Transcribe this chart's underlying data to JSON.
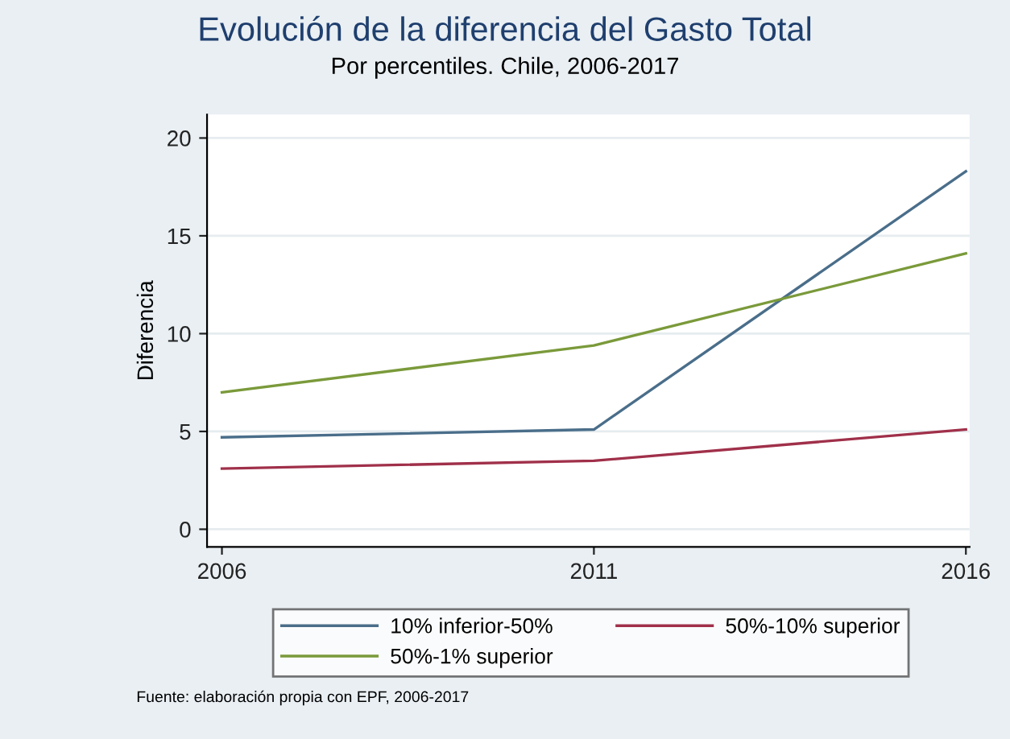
{
  "chart_data": {
    "type": "line",
    "title": "Evolución de la diferencia del Gasto Total",
    "subtitle": "Por percentiles. Chile, 2006-2017",
    "ylabel": "Diferencia",
    "x": [
      2006,
      2011,
      2016
    ],
    "xlim": [
      2005.8,
      2016.05
    ],
    "xticks": [
      2006,
      2011,
      2016
    ],
    "ylim": [
      -0.9,
      21.2
    ],
    "yticks": [
      0,
      5,
      10,
      15,
      20
    ],
    "series": [
      {
        "name": "10% inferior-50%",
        "color": "#4a6e8a",
        "values": [
          4.7,
          5.1,
          18.3
        ]
      },
      {
        "name": "50%-10% superior",
        "color": "#a0304a",
        "values": [
          3.1,
          3.5,
          5.1
        ]
      },
      {
        "name": "50%-1% superior",
        "color": "#7a9a3a",
        "values": [
          7.0,
          9.4,
          14.1
        ]
      }
    ],
    "grid": "y",
    "legend": "bottom",
    "marker": "none",
    "line_style": "solid",
    "annotations": [
      "Fuente: elaboración propia con EPF, 2006-2017"
    ]
  }
}
